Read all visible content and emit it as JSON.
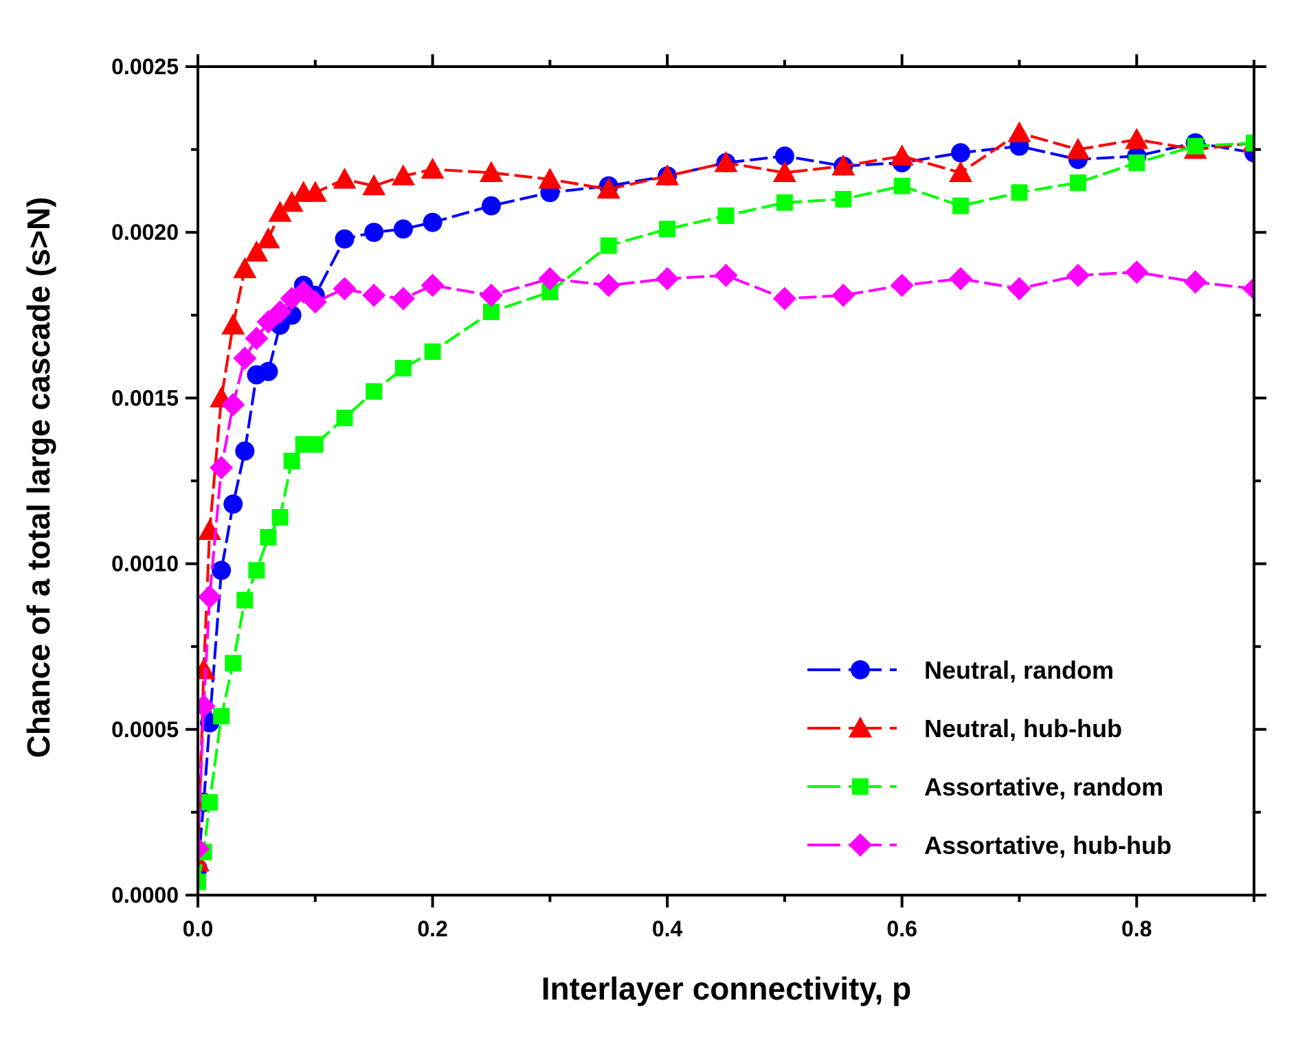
{
  "chart_data": {
    "type": "line",
    "title": "",
    "xlabel": "Interlayer connectivity, p",
    "ylabel": "Chance of a total large cascade (s>N)",
    "xlim": [
      0,
      0.9
    ],
    "ylim": [
      0,
      0.0025
    ],
    "xticks": [
      0.0,
      0.2,
      0.4,
      0.6,
      0.8
    ],
    "xtick_labels": [
      "0.0",
      "0.2",
      "0.4",
      "0.6",
      "0.8"
    ],
    "yticks": [
      0.0,
      0.0005,
      0.001,
      0.0015,
      0.002,
      0.0025
    ],
    "ytick_labels": [
      "0.0000",
      "0.0005",
      "0.0010",
      "0.0015",
      "0.0020",
      "0.0025"
    ],
    "grid": false,
    "legend_position": "bottom-right",
    "series": [
      {
        "name": "Neutral, random",
        "color": "#0000ff",
        "marker": "circle",
        "x": [
          0.0,
          0.005,
          0.01,
          0.02,
          0.03,
          0.04,
          0.05,
          0.06,
          0.07,
          0.08,
          0.09,
          0.1,
          0.125,
          0.15,
          0.175,
          0.2,
          0.25,
          0.3,
          0.35,
          0.4,
          0.45,
          0.5,
          0.55,
          0.6,
          0.65,
          0.7,
          0.75,
          0.8,
          0.85,
          0.9
        ],
        "y": [
          8e-05,
          0.00028,
          0.00052,
          0.00098,
          0.00118,
          0.00134,
          0.00157,
          0.00158,
          0.00172,
          0.00175,
          0.00184,
          0.00181,
          0.00198,
          0.002,
          0.00201,
          0.00203,
          0.00208,
          0.00212,
          0.00214,
          0.00217,
          0.00221,
          0.00223,
          0.0022,
          0.00221,
          0.00224,
          0.00226,
          0.00222,
          0.00223,
          0.00227,
          0.00224
        ]
      },
      {
        "name": "Neutral, hub-hub",
        "color": "#ff0000",
        "marker": "triangle",
        "x": [
          0.0,
          0.005,
          0.01,
          0.02,
          0.03,
          0.04,
          0.05,
          0.06,
          0.07,
          0.08,
          0.09,
          0.1,
          0.125,
          0.15,
          0.175,
          0.2,
          0.25,
          0.3,
          0.35,
          0.4,
          0.45,
          0.5,
          0.55,
          0.6,
          0.65,
          0.7,
          0.75,
          0.8,
          0.85,
          0.9
        ],
        "y": [
          0.0001,
          0.00068,
          0.0011,
          0.0015,
          0.00172,
          0.00189,
          0.00194,
          0.00198,
          0.00206,
          0.00209,
          0.00212,
          0.00212,
          0.00216,
          0.00214,
          0.00217,
          0.00219,
          0.00218,
          0.00216,
          0.00213,
          0.00217,
          0.00221,
          0.00218,
          0.0022,
          0.00223,
          0.00218,
          0.0023,
          0.00225,
          0.00228,
          0.00225,
          0.00227
        ]
      },
      {
        "name": "Assortative, random",
        "color": "#00ff00",
        "marker": "square",
        "x": [
          0.0,
          0.005,
          0.01,
          0.02,
          0.03,
          0.04,
          0.05,
          0.06,
          0.07,
          0.08,
          0.09,
          0.1,
          0.125,
          0.15,
          0.175,
          0.2,
          0.25,
          0.3,
          0.35,
          0.4,
          0.45,
          0.5,
          0.55,
          0.6,
          0.65,
          0.7,
          0.75,
          0.8,
          0.85,
          0.9
        ],
        "y": [
          4e-05,
          0.00013,
          0.00028,
          0.00054,
          0.0007,
          0.00089,
          0.00098,
          0.00108,
          0.00114,
          0.00131,
          0.00136,
          0.00136,
          0.00144,
          0.00152,
          0.00159,
          0.00164,
          0.00176,
          0.00182,
          0.00196,
          0.00201,
          0.00205,
          0.00209,
          0.0021,
          0.00214,
          0.00208,
          0.00212,
          0.00215,
          0.00221,
          0.00226,
          0.00227
        ]
      },
      {
        "name": "Assortative, hub-hub",
        "color": "#ff00ff",
        "marker": "diamond",
        "x": [
          0.0,
          0.005,
          0.01,
          0.02,
          0.03,
          0.04,
          0.05,
          0.06,
          0.07,
          0.08,
          0.09,
          0.1,
          0.125,
          0.15,
          0.175,
          0.2,
          0.25,
          0.3,
          0.35,
          0.4,
          0.45,
          0.5,
          0.55,
          0.6,
          0.65,
          0.7,
          0.75,
          0.8,
          0.85,
          0.9
        ],
        "y": [
          0.00014,
          0.00057,
          0.0009,
          0.00129,
          0.00148,
          0.00162,
          0.00168,
          0.00173,
          0.00176,
          0.0018,
          0.00182,
          0.00179,
          0.00183,
          0.00181,
          0.0018,
          0.00184,
          0.00181,
          0.00186,
          0.00184,
          0.00186,
          0.00187,
          0.0018,
          0.00181,
          0.00184,
          0.00186,
          0.00183,
          0.00187,
          0.00188,
          0.00185,
          0.00183
        ]
      }
    ]
  }
}
